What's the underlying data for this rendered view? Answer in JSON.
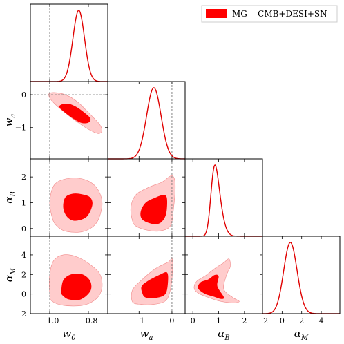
{
  "chart_data": {
    "type": "corner",
    "legend": {
      "label": "MG    CMB+DESI+SN",
      "color": "#ff0000",
      "placement": "top-right"
    },
    "colors": {
      "line": "#e00000",
      "inner_fill": "#ff0000",
      "outer_fill": "#ffcccc",
      "outer_edge": "#f08a8a",
      "reference_line": "#777777"
    },
    "parameters": [
      {
        "key": "w0",
        "symbol": "w",
        "sub": "0",
        "range": [
          -1.1,
          -0.7
        ],
        "ticks": [
          -1.0,
          -0.8
        ],
        "tick_labels": [
          "−1.0",
          "−0.8"
        ],
        "reference": -1.0
      },
      {
        "key": "wa",
        "symbol": "w",
        "sub": "a",
        "range": [
          -1.95,
          0.4
        ],
        "ticks": [
          -1,
          0
        ],
        "tick_labels": [
          "−1",
          "0"
        ],
        "reference": 0.0
      },
      {
        "key": "aB",
        "symbol": "α",
        "sub": "B",
        "range": [
          -0.3,
          2.7
        ],
        "ticks": [
          0,
          1,
          2
        ],
        "tick_labels": [
          "0",
          "1",
          "2"
        ],
        "reference": null
      },
      {
        "key": "aM",
        "symbol": "α",
        "sub": "M",
        "range": [
          -2.0,
          5.9
        ],
        "ticks": [
          -2,
          0,
          2,
          4
        ],
        "tick_labels": [
          "−2",
          "0",
          "2",
          "4"
        ],
        "reference": null
      }
    ],
    "marginals": [
      {
        "param": "w0",
        "mean": -0.85,
        "sigma": 0.03,
        "skew": 0.0
      },
      {
        "param": "wa",
        "mean": -0.55,
        "sigma": 0.22,
        "skew": 0.0
      },
      {
        "param": "aB",
        "mean": 0.72,
        "sigma": 0.26,
        "skew": 2.0
      },
      {
        "param": "aM",
        "mean": 0.55,
        "sigma": 0.75,
        "skew": 0.6
      }
    ],
    "contours": [
      {
        "x": "w0",
        "y": "wa",
        "inner": [
          [
            -0.94,
            -0.3
          ],
          [
            -0.9,
            -0.28
          ],
          [
            -0.86,
            -0.38
          ],
          [
            -0.82,
            -0.55
          ],
          [
            -0.79,
            -0.72
          ],
          [
            -0.8,
            -0.85
          ],
          [
            -0.84,
            -0.85
          ],
          [
            -0.89,
            -0.68
          ],
          [
            -0.93,
            -0.5
          ],
          [
            -0.95,
            -0.38
          ]
        ],
        "outer": [
          [
            -1.0,
            0.05
          ],
          [
            -0.95,
            0.05
          ],
          [
            -0.9,
            -0.05
          ],
          [
            -0.85,
            -0.25
          ],
          [
            -0.81,
            -0.48
          ],
          [
            -0.77,
            -0.72
          ],
          [
            -0.74,
            -0.92
          ],
          [
            -0.73,
            -1.1
          ],
          [
            -0.75,
            -1.18
          ],
          [
            -0.8,
            -1.05
          ],
          [
            -0.86,
            -0.82
          ],
          [
            -0.92,
            -0.55
          ],
          [
            -0.97,
            -0.3
          ],
          [
            -1.0,
            -0.1
          ]
        ]
      },
      {
        "x": "w0",
        "y": "aB",
        "inner": [
          [
            -0.93,
            0.8
          ],
          [
            -0.92,
            1.2
          ],
          [
            -0.88,
            1.35
          ],
          [
            -0.83,
            1.32
          ],
          [
            -0.79,
            1.2
          ],
          [
            -0.78,
            0.9
          ],
          [
            -0.81,
            0.45
          ],
          [
            -0.87,
            0.3
          ],
          [
            -0.91,
            0.45
          ]
        ],
        "outer": [
          [
            -0.99,
            0.5
          ],
          [
            -1.0,
            1.05
          ],
          [
            -0.98,
            1.65
          ],
          [
            -0.93,
            1.9
          ],
          [
            -0.85,
            1.95
          ],
          [
            -0.78,
            1.75
          ],
          [
            -0.74,
            1.35
          ],
          [
            -0.73,
            0.85
          ],
          [
            -0.76,
            0.2
          ],
          [
            -0.83,
            -0.12
          ],
          [
            -0.92,
            -0.1
          ],
          [
            -0.97,
            0.15
          ]
        ]
      },
      {
        "x": "w0",
        "y": "aM",
        "inner": [
          [
            -0.94,
            0.2
          ],
          [
            -0.93,
            1.4
          ],
          [
            -0.89,
            2.0
          ],
          [
            -0.83,
            2.0
          ],
          [
            -0.79,
            1.3
          ],
          [
            -0.79,
            0.3
          ],
          [
            -0.84,
            -0.55
          ],
          [
            -0.9,
            -0.55
          ],
          [
            -0.93,
            -0.2
          ]
        ],
        "outer": [
          [
            -1.0,
            0.0
          ],
          [
            -1.0,
            2.0
          ],
          [
            -0.98,
            3.4
          ],
          [
            -0.93,
            4.0
          ],
          [
            -0.86,
            3.8
          ],
          [
            -0.79,
            3.0
          ],
          [
            -0.74,
            2.0
          ],
          [
            -0.73,
            0.6
          ],
          [
            -0.76,
            -0.5
          ],
          [
            -0.83,
            -1.15
          ],
          [
            -0.93,
            -1.15
          ],
          [
            -0.99,
            -0.7
          ]
        ]
      },
      {
        "x": "wa",
        "y": "aB",
        "inner": [
          [
            -0.9,
            0.35
          ],
          [
            -0.95,
            0.65
          ],
          [
            -0.8,
            1.0
          ],
          [
            -0.5,
            1.2
          ],
          [
            -0.25,
            1.3
          ],
          [
            -0.15,
            1.15
          ],
          [
            -0.18,
            0.55
          ],
          [
            -0.35,
            0.22
          ],
          [
            -0.6,
            0.18
          ]
        ],
        "outer": [
          [
            -1.2,
            0.3
          ],
          [
            -1.25,
            0.8
          ],
          [
            -1.1,
            1.3
          ],
          [
            -0.7,
            1.6
          ],
          [
            -0.3,
            1.8
          ],
          [
            0.0,
            2.05
          ],
          [
            0.1,
            1.7
          ],
          [
            0.05,
            0.8
          ],
          [
            -0.05,
            0.1
          ],
          [
            -0.4,
            -0.1
          ],
          [
            -0.8,
            -0.05
          ],
          [
            -1.1,
            0.1
          ]
        ]
      },
      {
        "x": "wa",
        "y": "aM",
        "inner": [
          [
            -0.9,
            0.1
          ],
          [
            -0.92,
            0.8
          ],
          [
            -0.7,
            1.4
          ],
          [
            -0.35,
            2.0
          ],
          [
            -0.15,
            2.2
          ],
          [
            -0.12,
            1.3
          ],
          [
            -0.2,
            0.0
          ],
          [
            -0.5,
            -0.4
          ],
          [
            -0.8,
            -0.35
          ]
        ],
        "outer": [
          [
            -1.2,
            -0.8
          ],
          [
            -1.2,
            0.4
          ],
          [
            -0.9,
            1.5
          ],
          [
            -0.5,
            2.6
          ],
          [
            -0.1,
            3.3
          ],
          [
            0.0,
            3.7
          ],
          [
            0.02,
            2.5
          ],
          [
            -0.05,
            0.4
          ],
          [
            -0.2,
            -0.7
          ],
          [
            -0.55,
            -1.05
          ],
          [
            -0.95,
            -1.05
          ]
        ]
      },
      {
        "x": "aB",
        "y": "aM",
        "inner": [
          [
            0.2,
            0.6
          ],
          [
            0.3,
            1.2
          ],
          [
            0.6,
            1.5
          ],
          [
            0.85,
            1.95
          ],
          [
            1.0,
            1.8
          ],
          [
            0.95,
            0.8
          ],
          [
            1.2,
            -0.3
          ],
          [
            1.1,
            -0.5
          ],
          [
            0.8,
            -0.25
          ],
          [
            0.45,
            0.05
          ]
        ],
        "outer": [
          [
            0.05,
            0.6
          ],
          [
            0.15,
            1.3
          ],
          [
            0.5,
            1.9
          ],
          [
            0.9,
            2.7
          ],
          [
            1.2,
            3.2
          ],
          [
            1.4,
            3.6
          ],
          [
            1.45,
            2.8
          ],
          [
            1.3,
            1.9
          ],
          [
            1.2,
            0.5
          ],
          [
            1.55,
            -0.35
          ],
          [
            1.8,
            -0.75
          ],
          [
            1.55,
            -0.9
          ],
          [
            1.0,
            -0.7
          ],
          [
            0.55,
            -0.3
          ],
          [
            0.2,
            0.1
          ]
        ]
      }
    ]
  }
}
